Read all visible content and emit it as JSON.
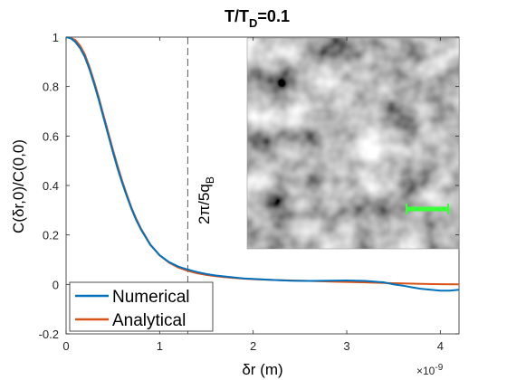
{
  "chart_data": {
    "type": "line",
    "title_main": "T/T",
    "title_sub": "D",
    "title_tail": "=0.1",
    "xlabel": "δr (m)",
    "ylabel": "C(δr,0)/C(0,0)",
    "x_exponent_base": "×10",
    "x_exponent_power": "-9",
    "xlim": [
      0,
      4.2
    ],
    "ylim": [
      -0.2,
      1
    ],
    "xticks": [
      0,
      1,
      2,
      3,
      4
    ],
    "xtick_labels": [
      "0",
      "1",
      "2",
      "3",
      "4"
    ],
    "yticks": [
      -0.2,
      0,
      0.2,
      0.4,
      0.6,
      0.8,
      1
    ],
    "ytick_labels": [
      "-0.2",
      "0",
      "0.2",
      "0.4",
      "0.6",
      "0.8",
      "1"
    ],
    "vline_x": 1.3,
    "vline_label": "2π/5q",
    "vline_label_sub": "B",
    "legend_position": "bottom-left",
    "grid": false,
    "series": [
      {
        "name": "Numerical",
        "color": "#0072BD",
        "x": [
          0,
          0.05,
          0.1,
          0.15,
          0.2,
          0.25,
          0.3,
          0.35,
          0.4,
          0.45,
          0.5,
          0.55,
          0.6,
          0.65,
          0.7,
          0.75,
          0.8,
          0.9,
          1.0,
          1.1,
          1.2,
          1.3,
          1.4,
          1.5,
          1.6,
          1.7,
          1.8,
          1.9,
          2.0,
          2.2,
          2.4,
          2.6,
          2.8,
          3.0,
          3.2,
          3.4,
          3.5,
          3.6,
          3.7,
          3.8,
          3.9,
          4.0,
          4.1,
          4.2
        ],
        "y": [
          1.0,
          0.995,
          0.98,
          0.955,
          0.92,
          0.87,
          0.81,
          0.745,
          0.675,
          0.605,
          0.535,
          0.47,
          0.41,
          0.355,
          0.305,
          0.26,
          0.222,
          0.16,
          0.118,
          0.09,
          0.072,
          0.06,
          0.05,
          0.042,
          0.036,
          0.032,
          0.028,
          0.024,
          0.022,
          0.018,
          0.015,
          0.014,
          0.015,
          0.016,
          0.014,
          0.008,
          0.0,
          -0.005,
          -0.012,
          -0.018,
          -0.022,
          -0.025,
          -0.025,
          -0.022
        ]
      },
      {
        "name": "Analytical",
        "color": "#D95319",
        "x": [
          0,
          0.05,
          0.1,
          0.15,
          0.2,
          0.25,
          0.3,
          0.35,
          0.4,
          0.45,
          0.5,
          0.55,
          0.6,
          0.65,
          0.7,
          0.75,
          0.8,
          0.9,
          1.0,
          1.1,
          1.2,
          1.3,
          1.4,
          1.5,
          1.6,
          1.7,
          1.8,
          1.9,
          2.0,
          2.2,
          2.4,
          2.6,
          2.8,
          3.0,
          3.2,
          3.4,
          3.6,
          3.8,
          4.0,
          4.2
        ],
        "y": [
          1.0,
          0.997,
          0.988,
          0.965,
          0.93,
          0.88,
          0.82,
          0.755,
          0.685,
          0.615,
          0.545,
          0.48,
          0.418,
          0.362,
          0.31,
          0.265,
          0.226,
          0.162,
          0.118,
          0.088,
          0.068,
          0.055,
          0.045,
          0.038,
          0.033,
          0.029,
          0.026,
          0.023,
          0.021,
          0.018,
          0.016,
          0.014,
          0.012,
          0.01,
          0.008,
          0.006,
          0.004,
          0.002,
          0.001,
          0.0
        ]
      }
    ],
    "inset": {
      "description": "grayscale random field image",
      "scalebar_color": "#39FF39"
    }
  }
}
